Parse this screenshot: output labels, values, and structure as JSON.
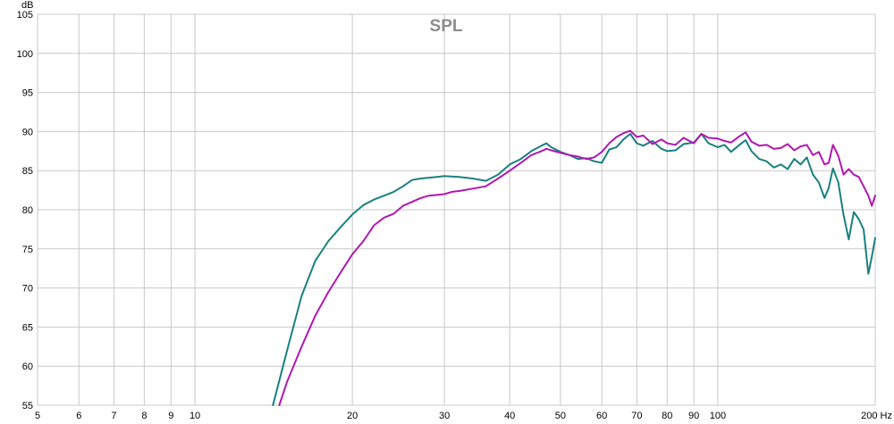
{
  "chart_data": {
    "type": "line",
    "title": "SPL",
    "ylabel": "dB",
    "xunit": "Hz",
    "xscale": "log",
    "xlim": [
      5,
      200
    ],
    "ylim": [
      55,
      105
    ],
    "xticks": [
      5,
      6,
      7,
      8,
      9,
      10,
      20,
      30,
      40,
      50,
      60,
      70,
      80,
      90,
      100,
      200
    ],
    "xtick_labels": [
      "5",
      "6",
      "7",
      "8",
      "9",
      "10",
      "20",
      "30",
      "40",
      "50",
      "60",
      "70",
      "80",
      "90",
      "100",
      "200 Hz"
    ],
    "yticks": [
      55,
      60,
      65,
      70,
      75,
      80,
      85,
      90,
      95,
      100,
      105
    ],
    "ytick_labels": [
      "55",
      "60",
      "65",
      "70",
      "75",
      "80",
      "85",
      "90",
      "95",
      "100",
      "105"
    ],
    "grid": true,
    "series": [
      {
        "color": "#1a8080",
        "x": [
          14.1,
          15,
          16,
          17,
          18,
          19,
          20,
          21,
          22,
          23,
          24,
          25,
          26,
          27,
          28,
          29,
          30,
          32,
          34,
          36,
          38,
          40,
          42,
          44,
          46,
          47,
          48,
          50,
          52,
          54,
          56,
          58,
          60,
          62,
          64,
          66,
          68,
          70,
          72,
          75,
          78,
          80,
          83,
          86,
          90,
          93,
          96,
          100,
          103,
          106,
          110,
          113,
          116,
          120,
          124,
          128,
          132,
          136,
          140,
          144,
          148,
          152,
          156,
          160,
          163,
          166,
          170,
          174,
          178,
          182,
          186,
          190,
          194,
          197,
          200
        ],
        "y": [
          55,
          62,
          69,
          73.5,
          76,
          77.8,
          79.4,
          80.6,
          81.3,
          81.8,
          82.3,
          83,
          83.8,
          84,
          84.1,
          84.2,
          84.3,
          84.2,
          84,
          83.7,
          84.5,
          85.8,
          86.5,
          87.5,
          88.2,
          88.5,
          88,
          87.4,
          87,
          86.5,
          86.6,
          86.2,
          86,
          87.7,
          88,
          89,
          89.7,
          88.5,
          88.2,
          88.8,
          87.8,
          87.5,
          87.6,
          88.4,
          88.6,
          89.7,
          88.5,
          88,
          88.3,
          87.4,
          88.3,
          88.9,
          87.5,
          86.5,
          86.2,
          85.4,
          85.8,
          85.2,
          86.5,
          85.8,
          86.7,
          84.5,
          83.5,
          81.5,
          82.8,
          85.3,
          83.5,
          79.3,
          76.2,
          79.7,
          78.8,
          77.5,
          71.8,
          74,
          76.4
        ]
      },
      {
        "color": "#b018b0",
        "x": [
          14.5,
          15,
          16,
          17,
          18,
          19,
          20,
          21,
          22,
          23,
          24,
          25,
          26,
          27,
          28,
          29,
          30,
          31,
          32,
          34,
          36,
          38,
          40,
          42,
          44,
          46,
          47,
          48,
          50,
          52,
          54,
          56,
          58,
          60,
          62,
          64,
          66,
          68,
          70,
          72,
          75,
          78,
          80,
          83,
          86,
          90,
          93,
          96,
          100,
          103,
          106,
          110,
          113,
          116,
          120,
          124,
          128,
          132,
          136,
          140,
          144,
          148,
          152,
          156,
          160,
          163,
          166,
          170,
          174,
          178,
          182,
          186,
          190,
          194,
          197,
          200
        ],
        "y": [
          55,
          58,
          62.5,
          66.5,
          69.5,
          72,
          74.3,
          76,
          78,
          79,
          79.5,
          80.5,
          81,
          81.5,
          81.8,
          81.9,
          82,
          82.3,
          82.4,
          82.7,
          83,
          84,
          85,
          86,
          87,
          87.5,
          87.8,
          87.6,
          87.3,
          87,
          86.8,
          86.5,
          86.7,
          87.4,
          88.5,
          89.3,
          89.8,
          90.1,
          89.3,
          89.5,
          88.4,
          89,
          88.5,
          88.3,
          89.2,
          88.5,
          89.7,
          89.2,
          89.1,
          88.8,
          88.6,
          89.4,
          89.9,
          88.7,
          88.2,
          88.3,
          87.8,
          87.9,
          88.4,
          87.6,
          88.1,
          88.3,
          87,
          87.4,
          85.8,
          86,
          88.3,
          86.9,
          84.5,
          85.2,
          84.5,
          84.2,
          83,
          81.8,
          80.5,
          81.8
        ]
      }
    ]
  }
}
